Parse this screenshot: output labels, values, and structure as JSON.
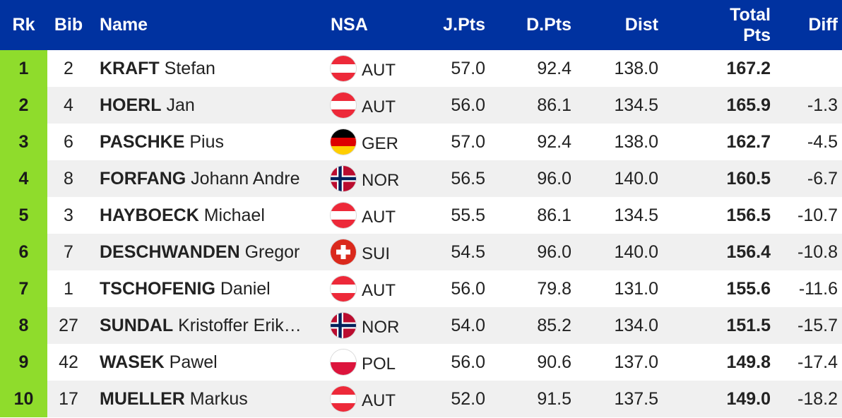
{
  "columns": {
    "rk": "Rk",
    "bib": "Bib",
    "name": "Name",
    "nsa": "NSA",
    "jpts": "J.Pts",
    "dpts": "D.Pts",
    "dist": "Dist",
    "total_line1": "Total",
    "total_line2": "Pts",
    "diff": "Diff"
  },
  "colors": {
    "header_bg": "#0032a0",
    "rank_bg": "#8fdc2c",
    "row_alt": "#f0f0f0"
  },
  "rows": [
    {
      "rk": "1",
      "bib": "2",
      "last": "KRAFT",
      "first": "Stefan",
      "nsa": "AUT",
      "flag": "austria-flag-icon",
      "jpts": "57.0",
      "dpts": "92.4",
      "dist": "138.0",
      "total": "167.2",
      "diff": ""
    },
    {
      "rk": "2",
      "bib": "4",
      "last": "HOERL",
      "first": "Jan",
      "nsa": "AUT",
      "flag": "austria-flag-icon",
      "jpts": "56.0",
      "dpts": "86.1",
      "dist": "134.5",
      "total": "165.9",
      "diff": "-1.3"
    },
    {
      "rk": "3",
      "bib": "6",
      "last": "PASCHKE",
      "first": "Pius",
      "nsa": "GER",
      "flag": "germany-flag-icon",
      "jpts": "57.0",
      "dpts": "92.4",
      "dist": "138.0",
      "total": "162.7",
      "diff": "-4.5"
    },
    {
      "rk": "4",
      "bib": "8",
      "last": "FORFANG",
      "first": "Johann Andre",
      "nsa": "NOR",
      "flag": "norway-flag-icon",
      "jpts": "56.5",
      "dpts": "96.0",
      "dist": "140.0",
      "total": "160.5",
      "diff": "-6.7"
    },
    {
      "rk": "5",
      "bib": "3",
      "last": "HAYBOECK",
      "first": "Michael",
      "nsa": "AUT",
      "flag": "austria-flag-icon",
      "jpts": "55.5",
      "dpts": "86.1",
      "dist": "134.5",
      "total": "156.5",
      "diff": "-10.7"
    },
    {
      "rk": "6",
      "bib": "7",
      "last": "DESCHWANDEN",
      "first": "Gregor",
      "nsa": "SUI",
      "flag": "switzerland-flag-icon",
      "jpts": "54.5",
      "dpts": "96.0",
      "dist": "140.0",
      "total": "156.4",
      "diff": "-10.8"
    },
    {
      "rk": "7",
      "bib": "1",
      "last": "TSCHOFENIG",
      "first": "Daniel",
      "nsa": "AUT",
      "flag": "austria-flag-icon",
      "jpts": "56.0",
      "dpts": "79.8",
      "dist": "131.0",
      "total": "155.6",
      "diff": "-11.6"
    },
    {
      "rk": "8",
      "bib": "27",
      "last": "SUNDAL",
      "first": "Kristoffer Erik…",
      "nsa": "NOR",
      "flag": "norway-flag-icon",
      "jpts": "54.0",
      "dpts": "85.2",
      "dist": "134.0",
      "total": "151.5",
      "diff": "-15.7"
    },
    {
      "rk": "9",
      "bib": "42",
      "last": "WASEK",
      "first": "Pawel",
      "nsa": "POL",
      "flag": "poland-flag-icon",
      "jpts": "56.0",
      "dpts": "90.6",
      "dist": "137.0",
      "total": "149.8",
      "diff": "-17.4"
    },
    {
      "rk": "10",
      "bib": "17",
      "last": "MUELLER",
      "first": "Markus",
      "nsa": "AUT",
      "flag": "austria-flag-icon",
      "jpts": "52.0",
      "dpts": "91.5",
      "dist": "137.5",
      "total": "149.0",
      "diff": "-18.2"
    }
  ]
}
